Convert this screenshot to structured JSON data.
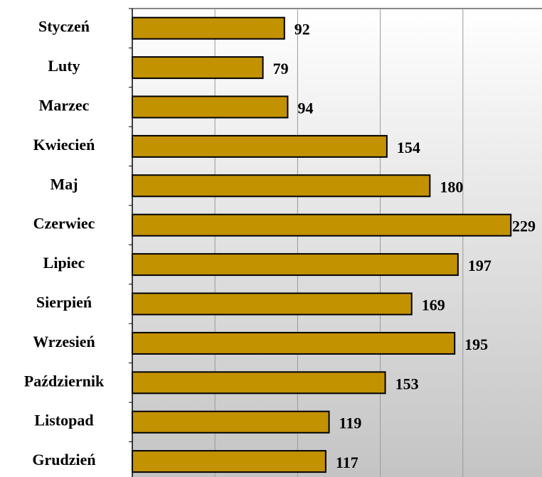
{
  "chart_data": {
    "type": "bar",
    "orientation": "horizontal",
    "categories": [
      "Styczeń",
      "Luty",
      "Marzec",
      "Kwiecień",
      "Maj",
      "Czerwiec",
      "Lipiec",
      "Sierpień",
      "Wrzesień",
      "Październik",
      "Listopad",
      "Grudzień"
    ],
    "values": [
      92,
      79,
      94,
      154,
      180,
      229,
      197,
      169,
      195,
      153,
      119,
      117
    ],
    "color": "#c39200",
    "xlim": [
      0,
      250
    ],
    "xticks": [
      0,
      50,
      100,
      150,
      200,
      250
    ],
    "grid": true
  }
}
